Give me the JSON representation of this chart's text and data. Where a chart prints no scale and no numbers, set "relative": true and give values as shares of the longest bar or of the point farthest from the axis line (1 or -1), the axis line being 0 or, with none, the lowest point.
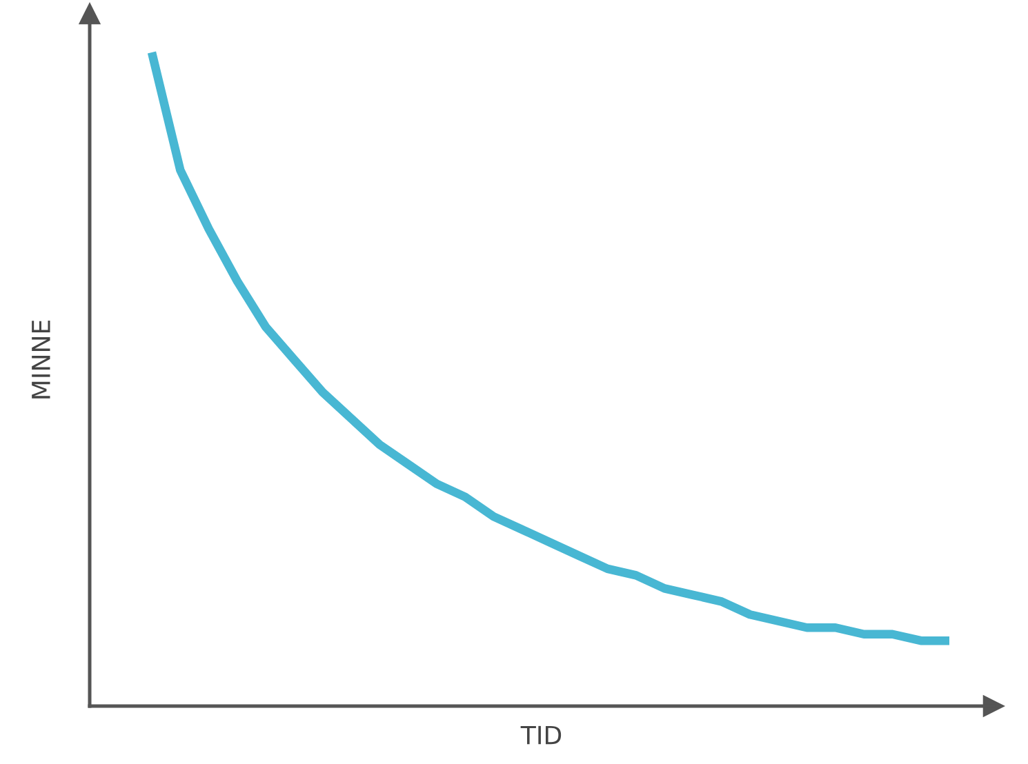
{
  "chart_data": {
    "type": "line",
    "xlabel": "TID",
    "ylabel": "MINNE",
    "relative": true,
    "categories": [
      null,
      null,
      null,
      null,
      null,
      null,
      null,
      null,
      null,
      null,
      null,
      null,
      null,
      null,
      null,
      null,
      null,
      null,
      null,
      null,
      null,
      null,
      null,
      null,
      null,
      null,
      null,
      null,
      null
    ],
    "series": [
      {
        "color": "#48b7d3",
        "values": [
          1.0,
          0.82,
          0.73,
          0.65,
          0.58,
          0.53,
          0.48,
          0.44,
          0.4,
          0.37,
          0.34,
          0.32,
          0.29,
          0.27,
          0.25,
          0.23,
          0.21,
          0.2,
          0.18,
          0.17,
          0.16,
          0.14,
          0.13,
          0.12,
          0.12,
          0.11,
          0.11,
          0.1,
          0.1
        ]
      }
    ],
    "legend": false,
    "marker": "none",
    "line_style": "solid"
  }
}
